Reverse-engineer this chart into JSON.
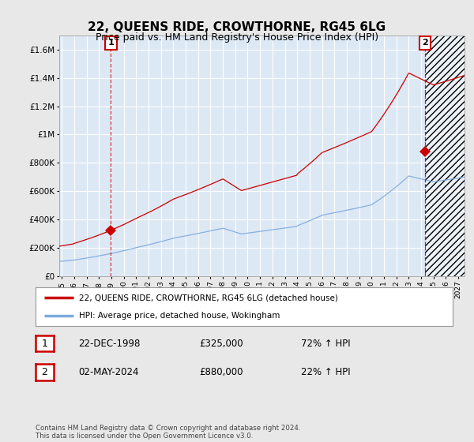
{
  "title": "22, QUEENS RIDE, CROWTHORNE, RG45 6LG",
  "subtitle": "Price paid vs. HM Land Registry's House Price Index (HPI)",
  "xlim": [
    1994.8,
    2027.5
  ],
  "ylim": [
    0,
    1700000
  ],
  "yticks": [
    0,
    200000,
    400000,
    600000,
    800000,
    1000000,
    1200000,
    1400000,
    1600000
  ],
  "ytick_labels": [
    "£0",
    "£200K",
    "£400K",
    "£600K",
    "£800K",
    "£1M",
    "£1.2M",
    "£1.4M",
    "£1.6M"
  ],
  "xticks": [
    1995,
    1996,
    1997,
    1998,
    1999,
    2000,
    2001,
    2002,
    2003,
    2004,
    2005,
    2006,
    2007,
    2008,
    2009,
    2010,
    2011,
    2012,
    2013,
    2014,
    2015,
    2016,
    2017,
    2018,
    2019,
    2020,
    2021,
    2022,
    2023,
    2024,
    2025,
    2026,
    2027
  ],
  "red_line_color": "#cc0000",
  "blue_line_color": "#7aaadd",
  "plot_bg_color": "#dde8f5",
  "background_color": "#e8e8e8",
  "grid_color": "#ffffff",
  "marker1_x": 1998.97,
  "marker1_y": 325000,
  "marker2_x": 2024.33,
  "marker2_y": 880000,
  "vline1_x": 1998.97,
  "vline2_x": 2024.33,
  "hatch_x1": 2024.33,
  "hatch_x2": 2027.5,
  "legend_label_red": "22, QUEENS RIDE, CROWTHORNE, RG45 6LG (detached house)",
  "legend_label_blue": "HPI: Average price, detached house, Wokingham",
  "table_row1": [
    "1",
    "22-DEC-1998",
    "£325,000",
    "72% ↑ HPI"
  ],
  "table_row2": [
    "2",
    "02-MAY-2024",
    "£880,000",
    "22% ↑ HPI"
  ],
  "footer": "Contains HM Land Registry data © Crown copyright and database right 2024.\nThis data is licensed under the Open Government Licence v3.0.",
  "title_fontsize": 11,
  "subtitle_fontsize": 9
}
